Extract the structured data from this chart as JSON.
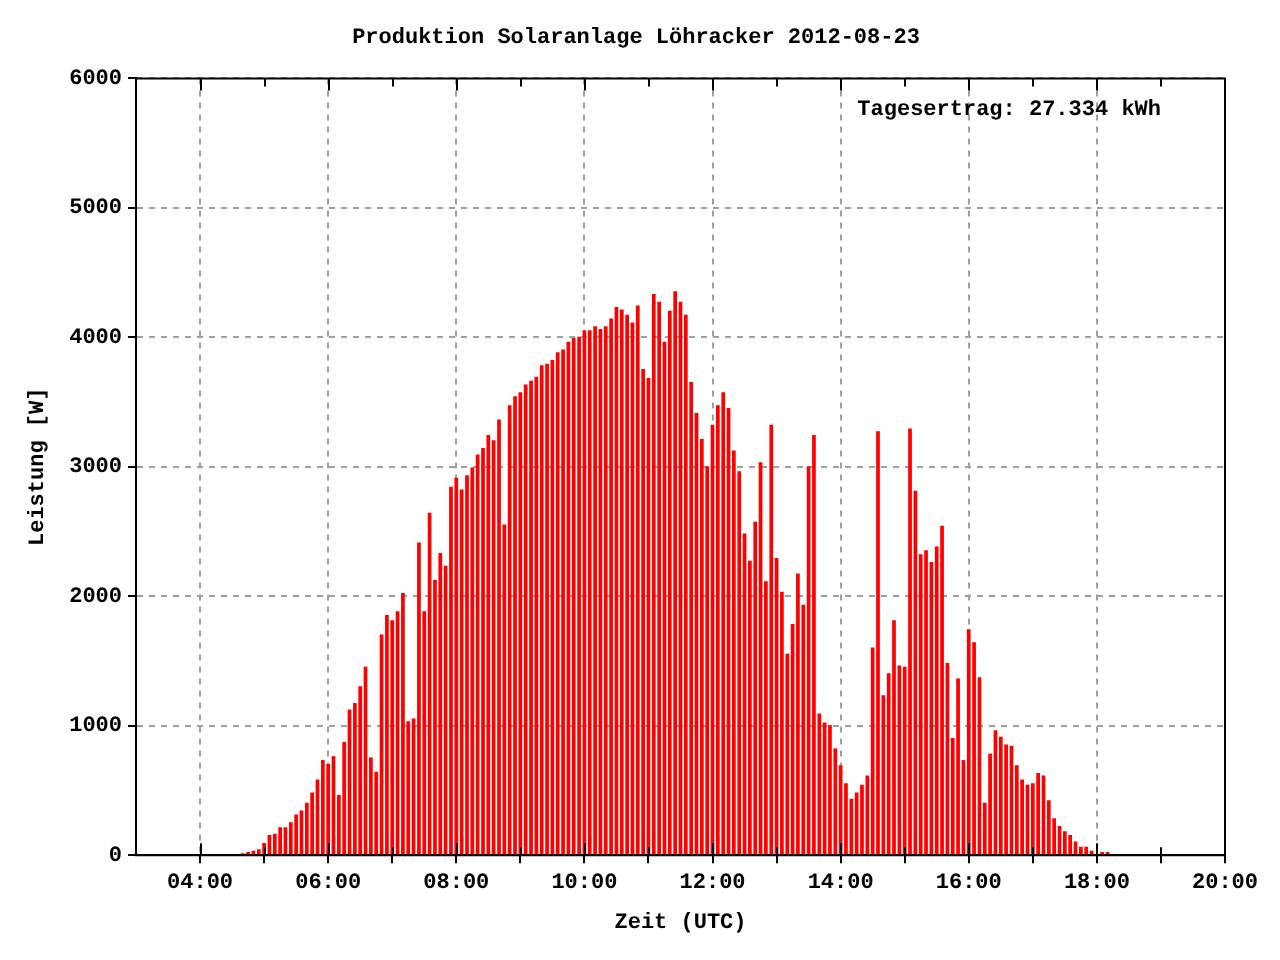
{
  "chart_data": {
    "type": "bar",
    "title": "Produktion Solaranlage Löhracker 2012-08-23",
    "xlabel": "Zeit (UTC)",
    "ylabel": "Leistung [W]",
    "annotations": [
      "Tagesertrag: 27.334 kWh"
    ],
    "x": [
      4.667,
      4.75,
      4.833,
      4.917,
      5,
      5.083,
      5.167,
      5.25,
      5.333,
      5.417,
      5.5,
      5.583,
      5.667,
      5.75,
      5.833,
      5.917,
      6,
      6.083,
      6.167,
      6.25,
      6.333,
      6.417,
      6.5,
      6.583,
      6.667,
      6.75,
      6.833,
      6.917,
      7,
      7.083,
      7.167,
      7.25,
      7.333,
      7.417,
      7.5,
      7.583,
      7.667,
      7.75,
      7.833,
      7.917,
      8,
      8.083,
      8.167,
      8.25,
      8.333,
      8.417,
      8.5,
      8.583,
      8.667,
      8.75,
      8.833,
      8.917,
      9,
      9.083,
      9.167,
      9.25,
      9.333,
      9.417,
      9.5,
      9.583,
      9.667,
      9.75,
      9.833,
      9.917,
      10,
      10.083,
      10.167,
      10.25,
      10.333,
      10.417,
      10.5,
      10.583,
      10.667,
      10.75,
      10.833,
      10.917,
      11,
      11.083,
      11.167,
      11.25,
      11.333,
      11.417,
      11.5,
      11.583,
      11.667,
      11.75,
      11.833,
      11.917,
      12,
      12.083,
      12.167,
      12.25,
      12.333,
      12.417,
      12.5,
      12.583,
      12.667,
      12.75,
      12.833,
      12.917,
      13,
      13.083,
      13.167,
      13.25,
      13.333,
      13.417,
      13.5,
      13.583,
      13.667,
      13.75,
      13.833,
      13.917,
      14,
      14.083,
      14.167,
      14.25,
      14.333,
      14.417,
      14.5,
      14.583,
      14.667,
      14.75,
      14.833,
      14.917,
      15,
      15.083,
      15.167,
      15.25,
      15.333,
      15.417,
      15.5,
      15.583,
      15.667,
      15.75,
      15.833,
      15.917,
      16,
      16.083,
      16.167,
      16.25,
      16.333,
      16.417,
      16.5,
      16.583,
      16.667,
      16.75,
      16.833,
      16.917,
      17,
      17.083,
      17.167,
      17.25,
      17.333,
      17.417,
      17.5,
      17.583,
      17.667,
      17.75,
      17.833,
      17.917,
      18,
      18.083,
      18.167
    ],
    "values": [
      10,
      20,
      30,
      40,
      90,
      150,
      160,
      210,
      210,
      250,
      310,
      340,
      400,
      480,
      580,
      730,
      700,
      760,
      460,
      870,
      1120,
      1170,
      1300,
      1450,
      750,
      640,
      1700,
      1850,
      1810,
      1880,
      2020,
      1030,
      1050,
      2410,
      1880,
      2640,
      2120,
      2330,
      2230,
      2840,
      2910,
      2820,
      2930,
      2990,
      3090,
      3140,
      3240,
      3200,
      3360,
      2550,
      3470,
      3540,
      3570,
      3630,
      3660,
      3690,
      3780,
      3790,
      3820,
      3880,
      3900,
      3960,
      3990,
      4000,
      4050,
      4050,
      4080,
      4060,
      4080,
      4140,
      4230,
      4210,
      4170,
      4110,
      4240,
      3750,
      3680,
      4330,
      4270,
      3960,
      4200,
      4350,
      4270,
      4170,
      3650,
      3410,
      3210,
      3000,
      3320,
      3470,
      3570,
      3450,
      3120,
      2960,
      2480,
      2270,
      2570,
      3030,
      2110,
      3320,
      2290,
      2030,
      1550,
      1780,
      2170,
      1930,
      3000,
      3240,
      1090,
      1020,
      1000,
      820,
      690,
      550,
      430,
      480,
      540,
      610,
      1600,
      3270,
      1230,
      1400,
      1810,
      1460,
      1450,
      3290,
      2810,
      2320,
      2350,
      2260,
      2380,
      2540,
      1480,
      900,
      1360,
      730,
      1740,
      1640,
      1370,
      400,
      780,
      960,
      910,
      850,
      840,
      690,
      580,
      540,
      550,
      630,
      610,
      420,
      280,
      220,
      180,
      150,
      100,
      60,
      60,
      30,
      null,
      20,
      20
    ],
    "color": "#ff0000",
    "xlim": [
      3,
      20
    ],
    "xticks": [
      {
        "value": 4,
        "label": "04:00"
      },
      {
        "value": 5,
        "label": null
      },
      {
        "value": 6,
        "label": "06:00"
      },
      {
        "value": 7,
        "label": null
      },
      {
        "value": 8,
        "label": "08:00"
      },
      {
        "value": 9,
        "label": null
      },
      {
        "value": 10,
        "label": "10:00"
      },
      {
        "value": 11,
        "label": null
      },
      {
        "value": 12,
        "label": "12:00"
      },
      {
        "value": 13,
        "label": null
      },
      {
        "value": 14,
        "label": "14:00"
      },
      {
        "value": 15,
        "label": null
      },
      {
        "value": 16,
        "label": "16:00"
      },
      {
        "value": 17,
        "label": null
      },
      {
        "value": 18,
        "label": "18:00"
      },
      {
        "value": 19,
        "label": null
      },
      {
        "value": 20,
        "label": "20:00"
      }
    ],
    "ylim": [
      0,
      6000
    ],
    "yticks": [
      0,
      1000,
      2000,
      3000,
      4000,
      5000,
      6000
    ],
    "grid": true
  }
}
